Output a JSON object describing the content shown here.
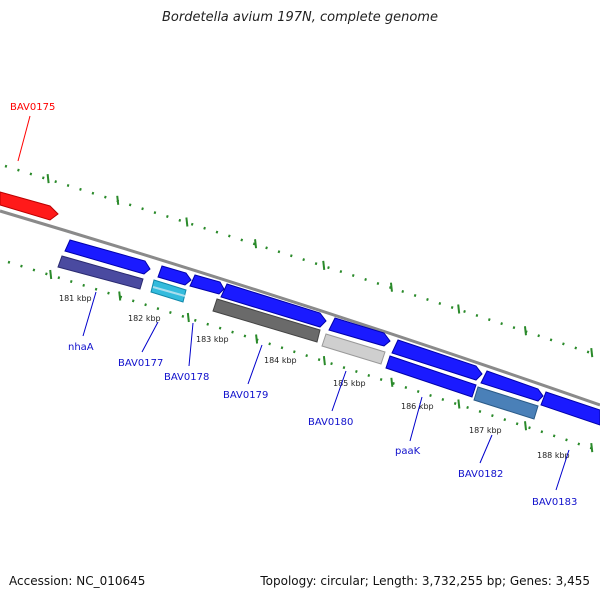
{
  "title": "Bordetella avium 197N, complete genome",
  "footer": {
    "accession": "Accession: NC_010645",
    "summary": "Topology: circular; Length: 3,732,255 bp; Genes: 3,455"
  },
  "colors": {
    "highlight_gene": "#ff0000",
    "gene_label": "#1010cc",
    "forward_strand": "#1a1aff",
    "tick_marks": "#2a8a2a",
    "backbone": "#888888"
  },
  "ticks": [
    "181 kbp",
    "182 kbp",
    "183 kbp",
    "184 kbp",
    "185 kbp",
    "186 kbp",
    "187 kbp",
    "188 kbp"
  ],
  "genes": [
    "BAV0175",
    "nhaA",
    "BAV0177",
    "BAV0178",
    "BAV0179",
    "BAV0180",
    "paaK",
    "BAV0182",
    "BAV0183"
  ]
}
